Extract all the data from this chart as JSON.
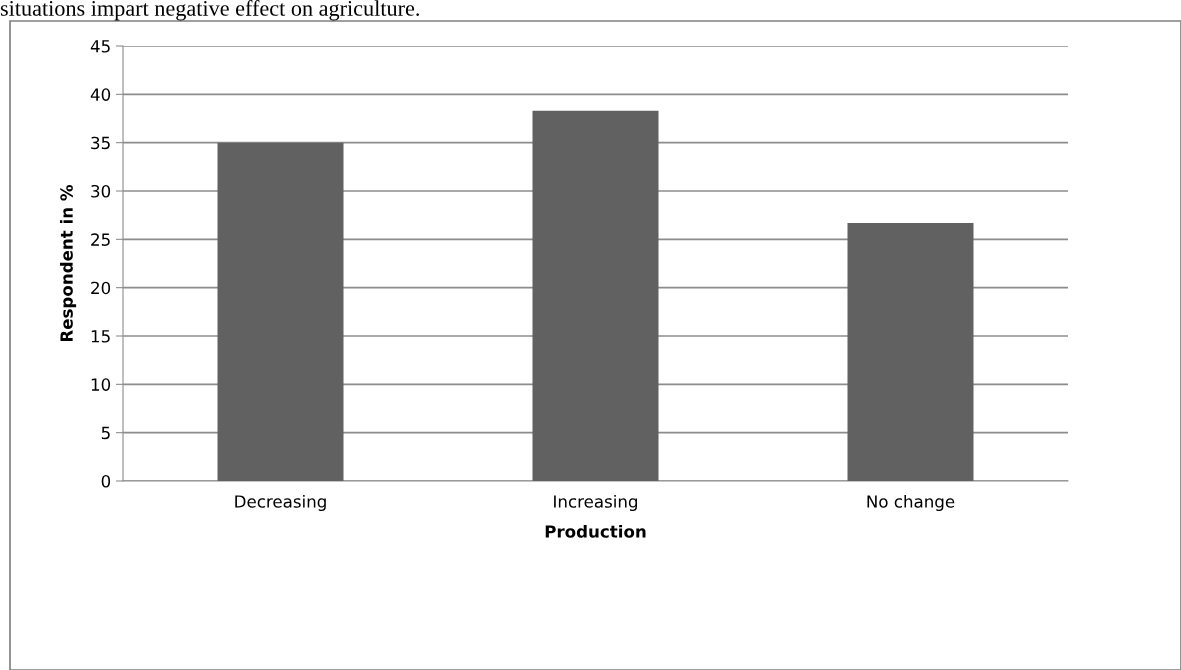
{
  "chart_data": {
    "type": "bar",
    "xlabel": "Production",
    "ylabel": "Respondent in %",
    "categories": [
      "Decreasing",
      "Increasing",
      "No change"
    ],
    "values": [
      35,
      38.3,
      26.7
    ],
    "color": "#616161",
    "ylim": [
      0,
      45
    ],
    "yticks": [
      0,
      5,
      10,
      15,
      20,
      25,
      30,
      35,
      40,
      45
    ],
    "grid": "y",
    "annotations": [
      "situations impart negative effect on agriculture."
    ]
  }
}
